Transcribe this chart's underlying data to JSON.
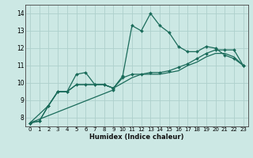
{
  "title": "",
  "xlabel": "Humidex (Indice chaleur)",
  "bg_color": "#cce8e4",
  "grid_color": "#aed0cc",
  "line_color": "#1a6b5a",
  "marker": "D",
  "markersize": 2.0,
  "linewidth": 0.9,
  "xlim": [
    -0.5,
    23.5
  ],
  "ylim": [
    7.5,
    14.5
  ],
  "yticks": [
    8,
    9,
    10,
    11,
    12,
    13,
    14
  ],
  "xticks": [
    0,
    1,
    2,
    3,
    4,
    5,
    6,
    7,
    8,
    9,
    10,
    11,
    12,
    13,
    14,
    15,
    16,
    17,
    18,
    19,
    20,
    21,
    22,
    23
  ],
  "series": [
    {
      "x": [
        0,
        1,
        2,
        3,
        4,
        5,
        6,
        7,
        8,
        9,
        10,
        11,
        12,
        13,
        14,
        15,
        16,
        17,
        18,
        19,
        20,
        21,
        22,
        23
      ],
      "y": [
        7.7,
        7.8,
        8.7,
        9.5,
        9.5,
        10.5,
        10.6,
        9.9,
        9.9,
        9.7,
        10.4,
        13.3,
        13.0,
        14.0,
        13.3,
        12.9,
        12.1,
        11.8,
        11.8,
        12.1,
        12.0,
        11.6,
        11.4,
        11.0
      ],
      "marker": true
    },
    {
      "x": [
        0,
        1,
        2,
        3,
        4,
        5,
        6,
        7,
        8,
        9,
        10,
        11,
        12,
        13,
        14,
        15,
        16,
        17,
        18,
        19,
        20,
        21,
        22,
        23
      ],
      "y": [
        7.7,
        7.8,
        8.7,
        9.5,
        9.5,
        9.9,
        9.9,
        9.9,
        9.9,
        9.7,
        10.3,
        10.5,
        10.5,
        10.6,
        10.6,
        10.7,
        10.9,
        11.1,
        11.4,
        11.7,
        11.9,
        11.9,
        11.9,
        11.0
      ],
      "marker": true
    },
    {
      "x": [
        0,
        2,
        3,
        4,
        5,
        6,
        7,
        8,
        9,
        10,
        11,
        12,
        13,
        14,
        15,
        16,
        17,
        18,
        19,
        20,
        21,
        22,
        23
      ],
      "y": [
        7.7,
        8.7,
        9.5,
        9.5,
        9.9,
        9.9,
        9.9,
        9.9,
        9.7,
        10.0,
        10.3,
        10.5,
        10.5,
        10.5,
        10.6,
        10.7,
        11.0,
        11.2,
        11.5,
        11.7,
        11.7,
        11.5,
        11.0
      ],
      "marker": false
    },
    {
      "x": [
        0,
        9
      ],
      "y": [
        7.7,
        9.6
      ],
      "marker": true
    }
  ],
  "dpi": 100,
  "figsize": [
    3.2,
    2.0
  ]
}
